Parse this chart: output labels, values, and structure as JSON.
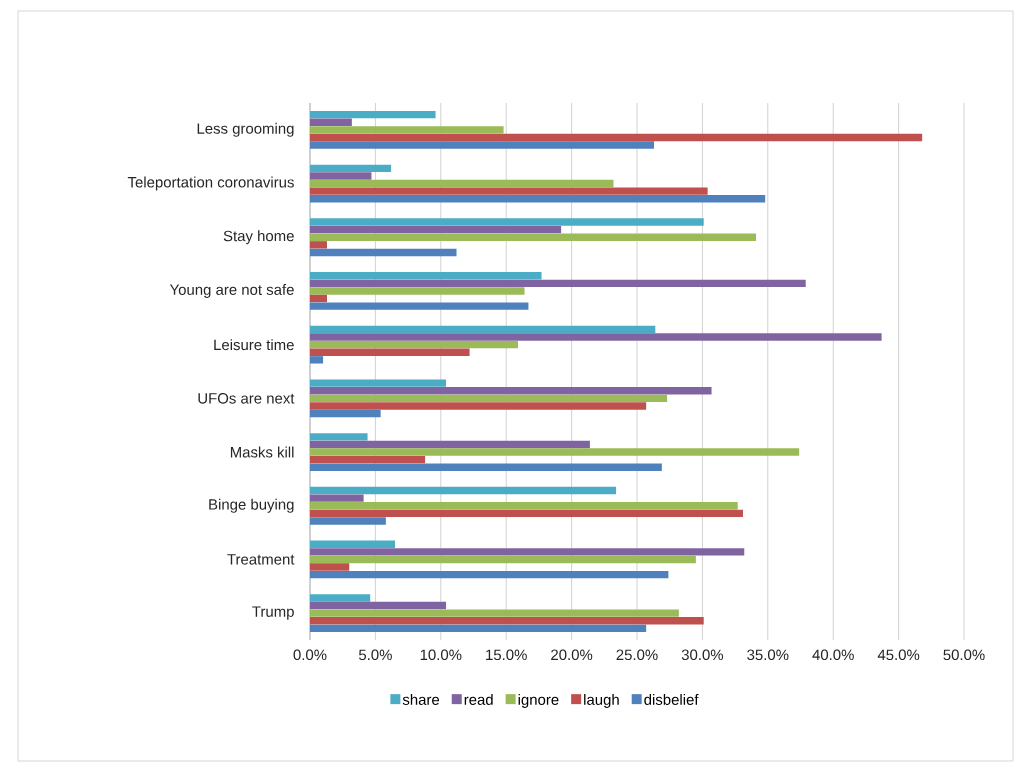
{
  "chart_data": {
    "type": "bar",
    "orientation": "horizontal",
    "categories": [
      "Less grooming",
      "Teleportation coronavirus",
      "Stay home",
      "Young are not safe",
      "Leisure time",
      "UFOs are next",
      "Masks kill",
      "Binge buying",
      "Treatment",
      "Trump"
    ],
    "series": [
      {
        "name": "share",
        "color": "#4bacc6",
        "values": [
          9.6,
          6.2,
          30.1,
          17.7,
          26.4,
          10.4,
          4.4,
          23.4,
          6.5,
          4.6
        ]
      },
      {
        "name": "read",
        "color": "#8064a2",
        "values": [
          3.2,
          4.7,
          19.2,
          37.9,
          43.7,
          30.7,
          21.4,
          4.1,
          33.2,
          10.4
        ]
      },
      {
        "name": "ignore",
        "color": "#9bbb59",
        "values": [
          14.8,
          23.2,
          34.1,
          16.4,
          15.9,
          27.3,
          37.4,
          32.7,
          29.5,
          28.2
        ]
      },
      {
        "name": "laugh",
        "color": "#c0504d",
        "values": [
          46.8,
          30.4,
          1.3,
          1.3,
          12.2,
          25.7,
          8.8,
          33.1,
          3.0,
          30.1
        ]
      },
      {
        "name": "disbelief",
        "color": "#4f81bd",
        "values": [
          26.3,
          34.8,
          11.2,
          16.7,
          1.0,
          5.4,
          26.9,
          5.8,
          27.4,
          25.7
        ]
      }
    ],
    "xlim": [
      0,
      50
    ],
    "xticks": [
      {
        "value": 0,
        "label": "0.0%"
      },
      {
        "value": 5,
        "label": "5.0%"
      },
      {
        "value": 10,
        "label": "10.0%"
      },
      {
        "value": 15,
        "label": "15.0%"
      },
      {
        "value": 20,
        "label": "20.0%"
      },
      {
        "value": 25,
        "label": "25.0%"
      },
      {
        "value": 30,
        "label": "30.0%"
      },
      {
        "value": 35,
        "label": "35.0%"
      },
      {
        "value": 40,
        "label": "40.0%"
      },
      {
        "value": 45,
        "label": "45.0%"
      },
      {
        "value": 50,
        "label": "50.0%"
      }
    ],
    "grid": "x",
    "legend": "bottom"
  }
}
